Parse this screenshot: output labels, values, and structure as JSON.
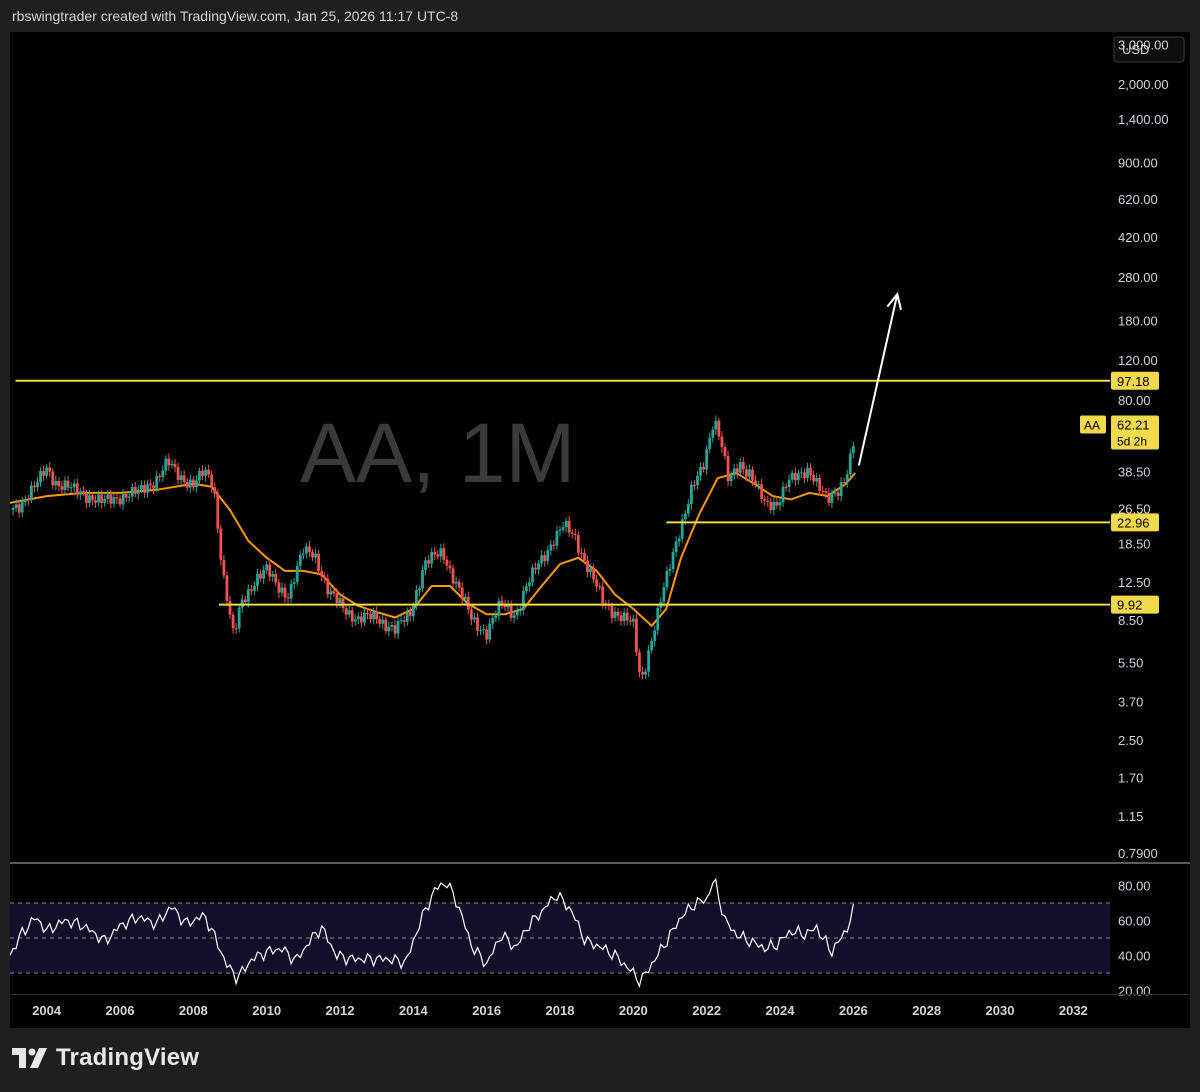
{
  "caption": "rbswingtrader created with TradingView.com, Jan 25, 2026 11:17 UTC-8",
  "brand": "TradingView",
  "chart_data": [
    {
      "type": "candlestick",
      "title": "AA, 1M",
      "currency": "USD",
      "scale": "log",
      "ylim": [
        0.72,
        3400
      ],
      "x_range": [
        2003.0,
        2033.0
      ],
      "x_tick_labels": [
        "2004",
        "2006",
        "2008",
        "2010",
        "2012",
        "2014",
        "2016",
        "2018",
        "2020",
        "2022",
        "2024",
        "2026",
        "2028",
        "2030",
        "2032"
      ],
      "y_tick_labels": [
        "3,000.00",
        "2,000.00",
        "1,400.00",
        "900.00",
        "620.00",
        "420.00",
        "280.00",
        "180.00",
        "120.00",
        "80.00",
        "38.50",
        "26.50",
        "18.50",
        "12.50",
        "8.50",
        "5.50",
        "3.70",
        "2.50",
        "1.70",
        "1.15",
        "0.7900"
      ],
      "price_path": [
        [
          2003.0,
          26
        ],
        [
          2003.3,
          28
        ],
        [
          2003.7,
          33
        ],
        [
          2004.0,
          40
        ],
        [
          2004.3,
          34
        ],
        [
          2004.7,
          32
        ],
        [
          2005.0,
          31
        ],
        [
          2005.5,
          28
        ],
        [
          2006.0,
          30
        ],
        [
          2006.5,
          31
        ],
        [
          2007.0,
          36
        ],
        [
          2007.3,
          42
        ],
        [
          2007.6,
          37
        ],
        [
          2008.0,
          34
        ],
        [
          2008.3,
          38
        ],
        [
          2008.55,
          34
        ],
        [
          2008.8,
          14
        ],
        [
          2009.1,
          7
        ],
        [
          2009.3,
          10
        ],
        [
          2009.7,
          13
        ],
        [
          2010.0,
          14
        ],
        [
          2010.3,
          12
        ],
        [
          2010.6,
          11
        ],
        [
          2011.0,
          17
        ],
        [
          2011.3,
          17
        ],
        [
          2011.7,
          11
        ],
        [
          2012.0,
          10
        ],
        [
          2012.5,
          8.5
        ],
        [
          2013.0,
          8.8
        ],
        [
          2013.5,
          7.6
        ],
        [
          2013.9,
          9
        ],
        [
          2014.3,
          15
        ],
        [
          2014.8,
          17
        ],
        [
          2015.3,
          11
        ],
        [
          2015.6,
          8.5
        ],
        [
          2016.0,
          7.5
        ],
        [
          2016.4,
          10
        ],
        [
          2016.8,
          9
        ],
        [
          2017.0,
          11
        ],
        [
          2017.4,
          15
        ],
        [
          2017.8,
          19
        ],
        [
          2018.1,
          22
        ],
        [
          2018.4,
          20
        ],
        [
          2018.8,
          14
        ],
        [
          2019.2,
          10
        ],
        [
          2019.6,
          9
        ],
        [
          2020.0,
          8
        ],
        [
          2020.2,
          4.5
        ],
        [
          2020.5,
          7
        ],
        [
          2020.8,
          11
        ],
        [
          2021.2,
          20
        ],
        [
          2021.6,
          32
        ],
        [
          2021.9,
          40
        ],
        [
          2022.2,
          68
        ],
        [
          2022.4,
          52
        ],
        [
          2022.6,
          34
        ],
        [
          2022.9,
          42
        ],
        [
          2023.2,
          38
        ],
        [
          2023.6,
          27
        ],
        [
          2023.9,
          28
        ],
        [
          2024.2,
          35
        ],
        [
          2024.5,
          36
        ],
        [
          2024.8,
          40
        ],
        [
          2025.0,
          35
        ],
        [
          2025.3,
          28
        ],
        [
          2025.6,
          32
        ],
        [
          2025.85,
          40
        ],
        [
          2026.0,
          52
        ],
        [
          2026.08,
          62.21
        ]
      ],
      "ma_path": [
        [
          2003.0,
          28
        ],
        [
          2004.0,
          30
        ],
        [
          2005.0,
          31
        ],
        [
          2006.0,
          31
        ],
        [
          2007.0,
          32
        ],
        [
          2008.0,
          34
        ],
        [
          2008.5,
          33
        ],
        [
          2009.0,
          26
        ],
        [
          2009.5,
          19
        ],
        [
          2010.0,
          16
        ],
        [
          2010.5,
          14
        ],
        [
          2011.0,
          14
        ],
        [
          2011.5,
          13.5
        ],
        [
          2012.0,
          11
        ],
        [
          2012.5,
          9.8
        ],
        [
          2013.0,
          9.2
        ],
        [
          2013.5,
          8.7
        ],
        [
          2014.0,
          9.5
        ],
        [
          2014.5,
          12
        ],
        [
          2015.0,
          12
        ],
        [
          2015.5,
          10
        ],
        [
          2016.0,
          9
        ],
        [
          2016.5,
          9
        ],
        [
          2017.0,
          9.5
        ],
        [
          2017.5,
          12
        ],
        [
          2018.0,
          15
        ],
        [
          2018.5,
          16
        ],
        [
          2019.0,
          14
        ],
        [
          2019.5,
          11
        ],
        [
          2020.0,
          9.5
        ],
        [
          2020.5,
          8
        ],
        [
          2020.9,
          9.5
        ],
        [
          2021.3,
          16
        ],
        [
          2021.8,
          25
        ],
        [
          2022.3,
          36
        ],
        [
          2022.8,
          38
        ],
        [
          2023.3,
          34
        ],
        [
          2023.8,
          30
        ],
        [
          2024.3,
          29
        ],
        [
          2024.8,
          31
        ],
        [
          2025.3,
          30
        ],
        [
          2025.8,
          34
        ],
        [
          2026.05,
          38
        ]
      ],
      "levels": [
        {
          "label": "97.18",
          "value": 97.18,
          "x_start": 2003.15
        },
        {
          "label": "22.96",
          "value": 22.96,
          "x_start": 2020.9
        },
        {
          "label": "9.92",
          "value": 9.92,
          "x_start": 2008.7
        }
      ],
      "last_price": {
        "symbol": "AA",
        "price": "62.21",
        "countdown": "5d 2h",
        "value": 62.21
      },
      "arrow": {
        "from": [
          2026.15,
          41
        ],
        "to": [
          2027.2,
          235
        ]
      },
      "colors": {
        "up": "#26a69a",
        "down": "#ef5350",
        "ma": "#ff9800",
        "level": "#f0d94a",
        "arrow": "#ffffff",
        "background": "#000000",
        "text": "#d1d4dc"
      }
    },
    {
      "type": "line",
      "title": "",
      "ylim": [
        18,
        90
      ],
      "y_tick_labels": [
        "80.00",
        "60.00",
        "40.00",
        "20.00"
      ],
      "bands": [
        70,
        50,
        30
      ],
      "rsi_path": [
        [
          2003.0,
          40
        ],
        [
          2003.3,
          52
        ],
        [
          2003.7,
          62
        ],
        [
          2004.0,
          54
        ],
        [
          2004.5,
          60
        ],
        [
          2005.0,
          57
        ],
        [
          2005.6,
          48
        ],
        [
          2006.0,
          57
        ],
        [
          2006.5,
          62
        ],
        [
          2007.0,
          58
        ],
        [
          2007.4,
          68
        ],
        [
          2007.8,
          58
        ],
        [
          2008.3,
          63
        ],
        [
          2008.6,
          50
        ],
        [
          2008.9,
          35
        ],
        [
          2009.2,
          27
        ],
        [
          2009.6,
          38
        ],
        [
          2010.0,
          42
        ],
        [
          2010.4,
          44
        ],
        [
          2010.8,
          37
        ],
        [
          2011.2,
          49
        ],
        [
          2011.5,
          56
        ],
        [
          2011.9,
          40
        ],
        [
          2012.3,
          38
        ],
        [
          2012.8,
          38
        ],
        [
          2013.3,
          38
        ],
        [
          2013.8,
          36
        ],
        [
          2014.2,
          60
        ],
        [
          2014.6,
          78
        ],
        [
          2014.9,
          82
        ],
        [
          2015.2,
          70
        ],
        [
          2015.6,
          45
        ],
        [
          2016.0,
          35
        ],
        [
          2016.4,
          52
        ],
        [
          2016.8,
          44
        ],
        [
          2017.1,
          56
        ],
        [
          2017.5,
          65
        ],
        [
          2017.9,
          75
        ],
        [
          2018.3,
          66
        ],
        [
          2018.7,
          48
        ],
        [
          2019.1,
          45
        ],
        [
          2019.5,
          40
        ],
        [
          2019.9,
          32
        ],
        [
          2020.2,
          25
        ],
        [
          2020.5,
          35
        ],
        [
          2020.9,
          48
        ],
        [
          2021.3,
          62
        ],
        [
          2021.7,
          70
        ],
        [
          2022.0,
          72
        ],
        [
          2022.2,
          84
        ],
        [
          2022.5,
          60
        ],
        [
          2022.8,
          52
        ],
        [
          2023.2,
          48
        ],
        [
          2023.6,
          44
        ],
        [
          2023.9,
          46
        ],
        [
          2024.3,
          54
        ],
        [
          2024.7,
          52
        ],
        [
          2025.0,
          56
        ],
        [
          2025.4,
          42
        ],
        [
          2025.8,
          54
        ],
        [
          2026.08,
          70
        ]
      ],
      "colors": {
        "line": "#ffffff",
        "overbought": "#8fcc85",
        "band_fill": "#130f2a",
        "band_line": "#8a8a8a"
      }
    }
  ]
}
